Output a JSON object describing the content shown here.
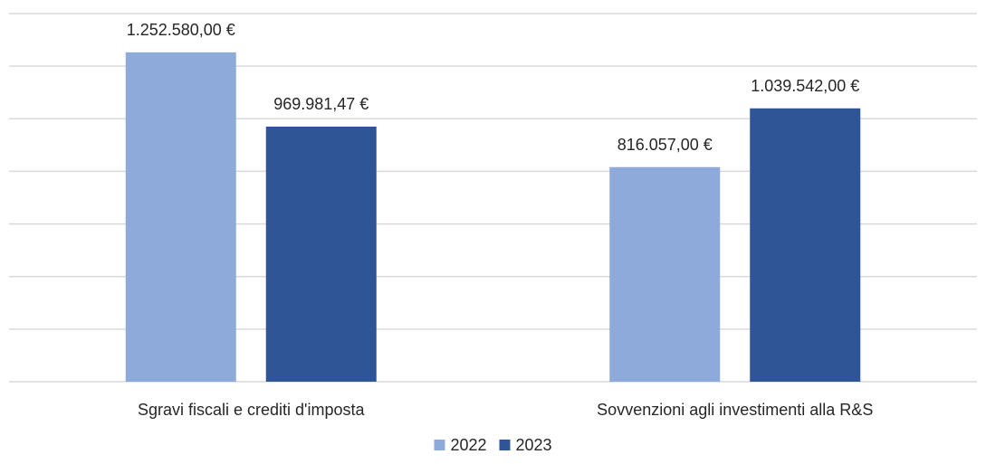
{
  "chart_data": {
    "type": "bar",
    "categories": [
      "Sgravi fiscali e crediti d'imposta",
      "Sovvenzioni agli investimenti alla R&S"
    ],
    "series": [
      {
        "name": "2022",
        "values": [
          1252580.0,
          816057.0
        ],
        "labels": [
          "1.252.580,00 €",
          "816.057,00 €"
        ],
        "color": "#8eaadb"
      },
      {
        "name": "2023",
        "values": [
          969981.47,
          1039542.0
        ],
        "labels": [
          "969.981,47 €",
          "1.039.542,00 €"
        ],
        "color": "#2f5597"
      }
    ],
    "ylim": [
      0,
      1400000
    ],
    "y_step": 200000,
    "grid": true,
    "legend_position": "bottom"
  }
}
